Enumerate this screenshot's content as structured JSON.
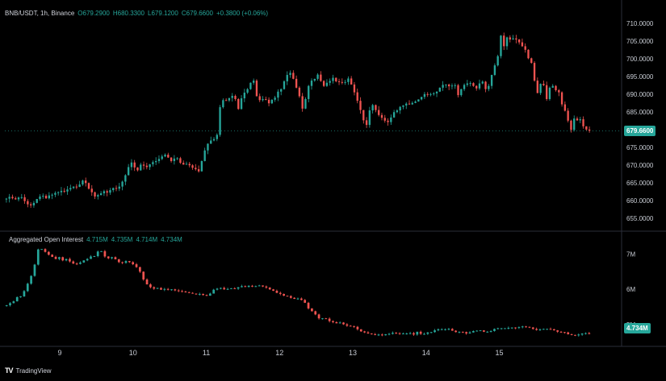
{
  "header": {
    "symbol": "BNB/USDT, 1h, Binance",
    "open": "O679.2900",
    "high": "H680.3300",
    "low": "L679.1200",
    "close": "C679.6600",
    "change": "+0.3800 (+0.06%)"
  },
  "oi_header": {
    "title": "Aggregated Open Interest",
    "v1": "4.715M",
    "v2": "4.735M",
    "v3": "4.714M",
    "v4": "4.734M"
  },
  "price_badge": "679.6600",
  "oi_badge": "4.734M",
  "brand": "TradingView",
  "colors": {
    "up": "#26a69a",
    "down": "#ef5350",
    "background": "#000000",
    "grid": "#1a1a1a"
  },
  "chart_data": [
    {
      "type": "candlestick",
      "title": "BNB/USDT, 1h, Binance",
      "x_ticks": [
        "9",
        "10",
        "11",
        "12",
        "13",
        "14",
        "15"
      ],
      "y_ticks": [
        "710.0000",
        "705.0000",
        "700.0000",
        "695.0000",
        "690.0000",
        "685.0000",
        "680.0000",
        "675.0000",
        "670.0000",
        "665.0000",
        "660.0000",
        "655.0000"
      ],
      "ylim": [
        652,
        712
      ],
      "last_value": 679.66,
      "close": [
        660.5,
        661,
        660.6,
        660.3,
        660.8,
        660.9,
        659.8,
        658.9,
        658.6,
        659.3,
        660.4,
        661.1,
        661.3,
        660.6,
        661.4,
        661.6,
        662.1,
        662.3,
        662.7,
        662.5,
        663.1,
        663.5,
        663.9,
        663.8,
        664.5,
        665.6,
        664.9,
        663.3,
        662.3,
        661.1,
        661.5,
        662,
        662.6,
        662.2,
        662.9,
        663.5,
        663.3,
        663.9,
        665.3,
        667.1,
        669.4,
        670.7,
        669.3,
        668.5,
        670.1,
        669.8,
        669.4,
        670.2,
        670.8,
        671.1,
        671.7,
        672.4,
        672.9,
        672.1,
        671.1,
        671.8,
        671.9,
        670.6,
        670.1,
        670.3,
        669.9,
        669.2,
        668.8,
        668.2,
        671.1,
        674.1,
        676,
        676.9,
        677.3,
        678.5,
        686.3,
        688.3,
        688.2,
        688.9,
        689.5,
        688.6,
        685.8,
        688.8,
        690.4,
        691.4,
        693.2,
        693.8,
        689.4,
        688.3,
        688.6,
        688.4,
        687.4,
        688.4,
        689,
        690.7,
        691.4,
        693.6,
        695.4,
        696,
        694.3,
        691.8,
        689.4,
        685.9,
        688.6,
        692.3,
        693.8,
        694.3,
        695.5,
        693.7,
        692.3,
        693.2,
        693.7,
        694.6,
        693.6,
        693.4,
        693.3,
        693.4,
        694.4,
        692.7,
        690.5,
        688.1,
        685.5,
        682.6,
        681.3,
        685.4,
        686.9,
        685.5,
        684.1,
        683.3,
        682.5,
        682.1,
        683.4,
        684.9,
        685.4,
        686.4,
        686.8,
        687.3,
        687.1,
        687.5,
        687.9,
        688.5,
        689.2,
        690,
        689.8,
        690,
        690.2,
        690.7,
        691.8,
        692.6,
        692.7,
        692.2,
        692.4,
        692.5,
        689.7,
        691.4,
        692.6,
        693,
        693.1,
        692.3,
        691.6,
        693,
        693.5,
        691.4,
        692.3,
        695.4,
        698.1,
        700.7,
        706.5,
        703.5,
        706,
        705.4,
        705.7,
        705.4,
        704.6,
        703.5,
        702.5,
        700.1,
        698.8,
        693.8,
        690.3,
        692.9,
        692.5,
        688.6,
        691.8,
        692.3,
        691.1,
        690.5,
        687.1,
        685.3,
        682.5,
        679.9,
        683.1,
        682.6,
        682.9,
        680.9,
        680,
        679.66
      ]
    },
    {
      "type": "candlestick",
      "title": "Aggregated Open Interest",
      "x_ticks": [
        "9",
        "10",
        "11",
        "12",
        "13",
        "14",
        "15"
      ],
      "y_ticks": [
        "7M",
        "6M",
        "5M"
      ],
      "unit": "M",
      "ylim": [
        4.5,
        7.35
      ],
      "last_value": 4.734,
      "close": [
        5.55,
        5.61,
        5.66,
        5.78,
        5.8,
        5.95,
        6.16,
        6.38,
        6.7,
        7.13,
        7.14,
        7.06,
        6.98,
        6.92,
        6.86,
        6.91,
        6.82,
        6.86,
        6.79,
        6.73,
        6.72,
        6.76,
        6.82,
        6.86,
        6.93,
        6.94,
        7.07,
        7.08,
        6.93,
        6.88,
        6.91,
        6.85,
        6.77,
        6.75,
        6.8,
        6.77,
        6.71,
        6.63,
        6.5,
        6.28,
        6.14,
        6.06,
        6.02,
        6.04,
        5.99,
        6.01,
        5.99,
        6,
        5.97,
        5.95,
        5.94,
        5.92,
        5.9,
        5.88,
        5.86,
        5.87,
        5.84,
        5.82,
        5.88,
        5.99,
        6.02,
        6.04,
        6,
        6.01,
        6.03,
        6.02,
        6.06,
        6.09,
        6.07,
        6.1,
        6.08,
        6.09,
        6.11,
        6.08,
        6.05,
        6,
        5.96,
        5.9,
        5.87,
        5.82,
        5.81,
        5.76,
        5.73,
        5.74,
        5.7,
        5.62,
        5.46,
        5.38,
        5.29,
        5.18,
        5.18,
        5.17,
        5.1,
        5.07,
        5.04,
        5.06,
        5.01,
        4.97,
        4.96,
        4.94,
        4.87,
        4.81,
        4.78,
        4.75,
        4.73,
        4.71,
        4.72,
        4.7,
        4.73,
        4.74,
        4.77,
        4.76,
        4.74,
        4.75,
        4.75,
        4.76,
        4.72,
        4.8,
        4.74,
        4.74,
        4.78,
        4.79,
        4.84,
        4.87,
        4.87,
        4.87,
        4.88,
        4.83,
        4.79,
        4.8,
        4.79,
        4.75,
        4.78,
        4.82,
        4.83,
        4.84,
        4.8,
        4.8,
        4.82,
        4.88,
        4.9,
        4.9,
        4.9,
        4.91,
        4.92,
        4.91,
        4.93,
        4.95,
        4.94,
        4.92,
        4.88,
        4.85,
        4.87,
        4.88,
        4.88,
        4.87,
        4.84,
        4.8,
        4.79,
        4.78,
        4.73,
        4.71,
        4.7,
        4.72,
        4.75,
        4.76,
        4.734
      ]
    }
  ]
}
